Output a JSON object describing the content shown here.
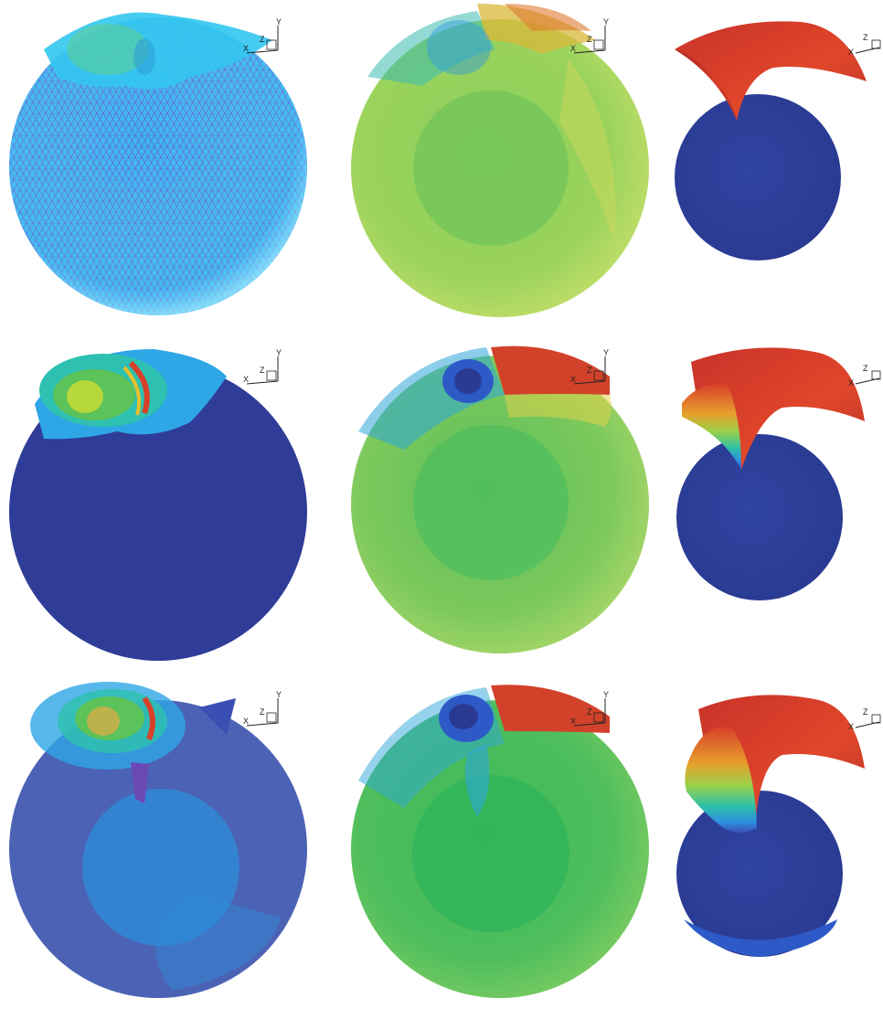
{
  "figure": {
    "axis_triad_labels": {
      "x": "X",
      "y": "Y",
      "z": "Z"
    },
    "colors": {
      "mesh_background": "#35c8f2",
      "mesh_lines": "#6a58d6",
      "deep_blue": "#2c3f98",
      "green": "#7cc55a",
      "red": "#d8402a"
    },
    "rows": [
      {
        "panels": [
          {
            "name": "surface-mesh-sphere"
          },
          {
            "name": "translucent-sphere-contours"
          },
          {
            "name": "deforming-sheet-on-sphere"
          }
        ]
      },
      {
        "panels": [
          {
            "name": "surface-contour-sphere"
          },
          {
            "name": "translucent-sphere-contours"
          },
          {
            "name": "deforming-sheet-on-sphere"
          }
        ]
      },
      {
        "panels": [
          {
            "name": "translucent-blue-sphere"
          },
          {
            "name": "translucent-sphere-contours"
          },
          {
            "name": "deforming-sheet-on-sphere"
          }
        ]
      }
    ]
  }
}
